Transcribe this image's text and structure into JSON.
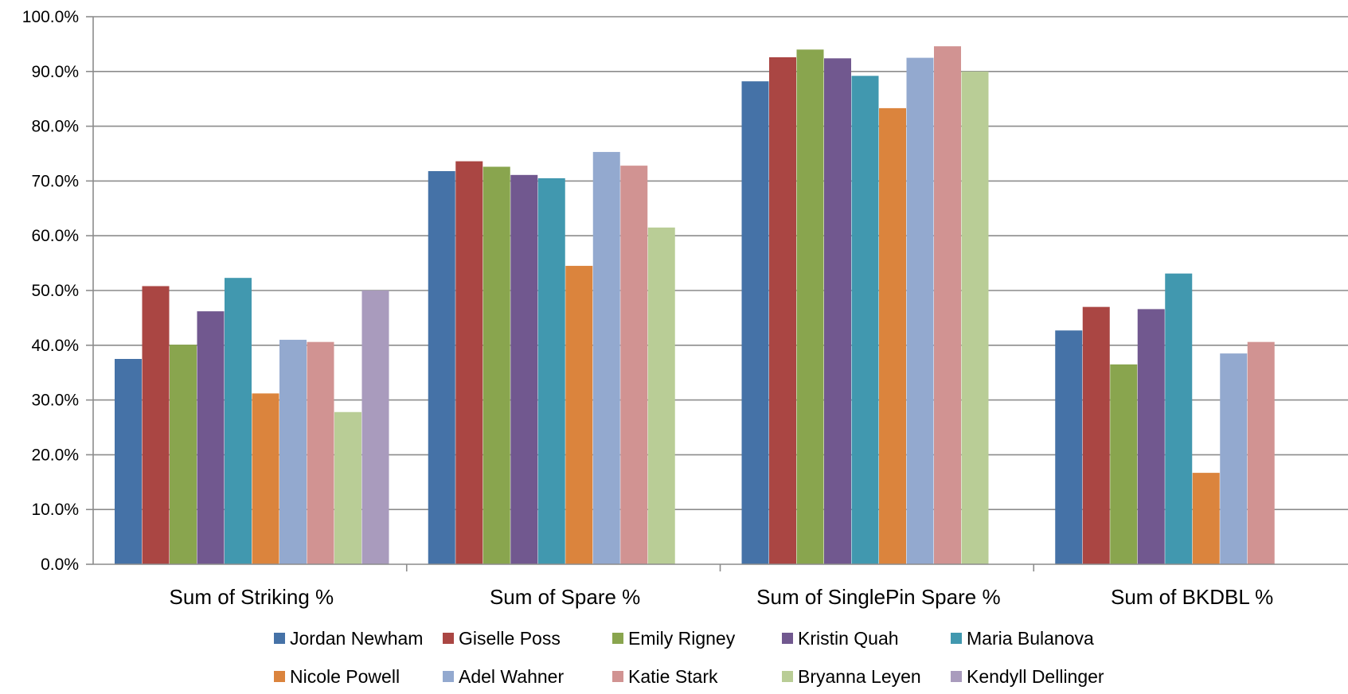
{
  "chart_data": {
    "type": "bar",
    "categories": [
      "Sum of Striking %",
      "Sum of Spare %",
      "Sum of SinglePin Spare %",
      "Sum of BKDBL %"
    ],
    "ylim": [
      0,
      100
    ],
    "yticks": [
      "0.0%",
      "10.0%",
      "20.0%",
      "30.0%",
      "40.0%",
      "50.0%",
      "60.0%",
      "70.0%",
      "80.0%",
      "90.0%",
      "100.0%"
    ],
    "grid": true,
    "legend": "bottom",
    "series": [
      {
        "name": "Jordan Newham",
        "color": "#4572A7",
        "values": [
          37.5,
          71.8,
          88.2,
          42.7
        ]
      },
      {
        "name": "Giselle Poss",
        "color": "#AA4643",
        "values": [
          50.8,
          73.6,
          92.6,
          47.0
        ]
      },
      {
        "name": "Emily Rigney",
        "color": "#89A54E",
        "values": [
          40.1,
          72.6,
          94.0,
          36.5
        ]
      },
      {
        "name": "Kristin Quah",
        "color": "#71588F",
        "values": [
          46.2,
          71.1,
          92.4,
          46.6
        ]
      },
      {
        "name": "Maria Bulanova",
        "color": "#4198AF",
        "values": [
          52.3,
          70.5,
          89.2,
          53.1
        ]
      },
      {
        "name": "Nicole Powell",
        "color": "#DB843D",
        "values": [
          31.2,
          54.5,
          83.3,
          16.7
        ]
      },
      {
        "name": "Adel Wahner",
        "color": "#93A9CF",
        "values": [
          41.0,
          75.3,
          92.5,
          38.5
        ]
      },
      {
        "name": "Katie Stark",
        "color": "#D19392",
        "values": [
          40.6,
          72.8,
          94.6,
          40.6
        ]
      },
      {
        "name": "Bryanna Leyen",
        "color": "#B9CD96",
        "values": [
          27.8,
          61.5,
          90.0,
          null
        ]
      },
      {
        "name": "Kendyll Dellinger",
        "color": "#A99BBD",
        "values": [
          50.0,
          null,
          null,
          null
        ]
      }
    ]
  }
}
